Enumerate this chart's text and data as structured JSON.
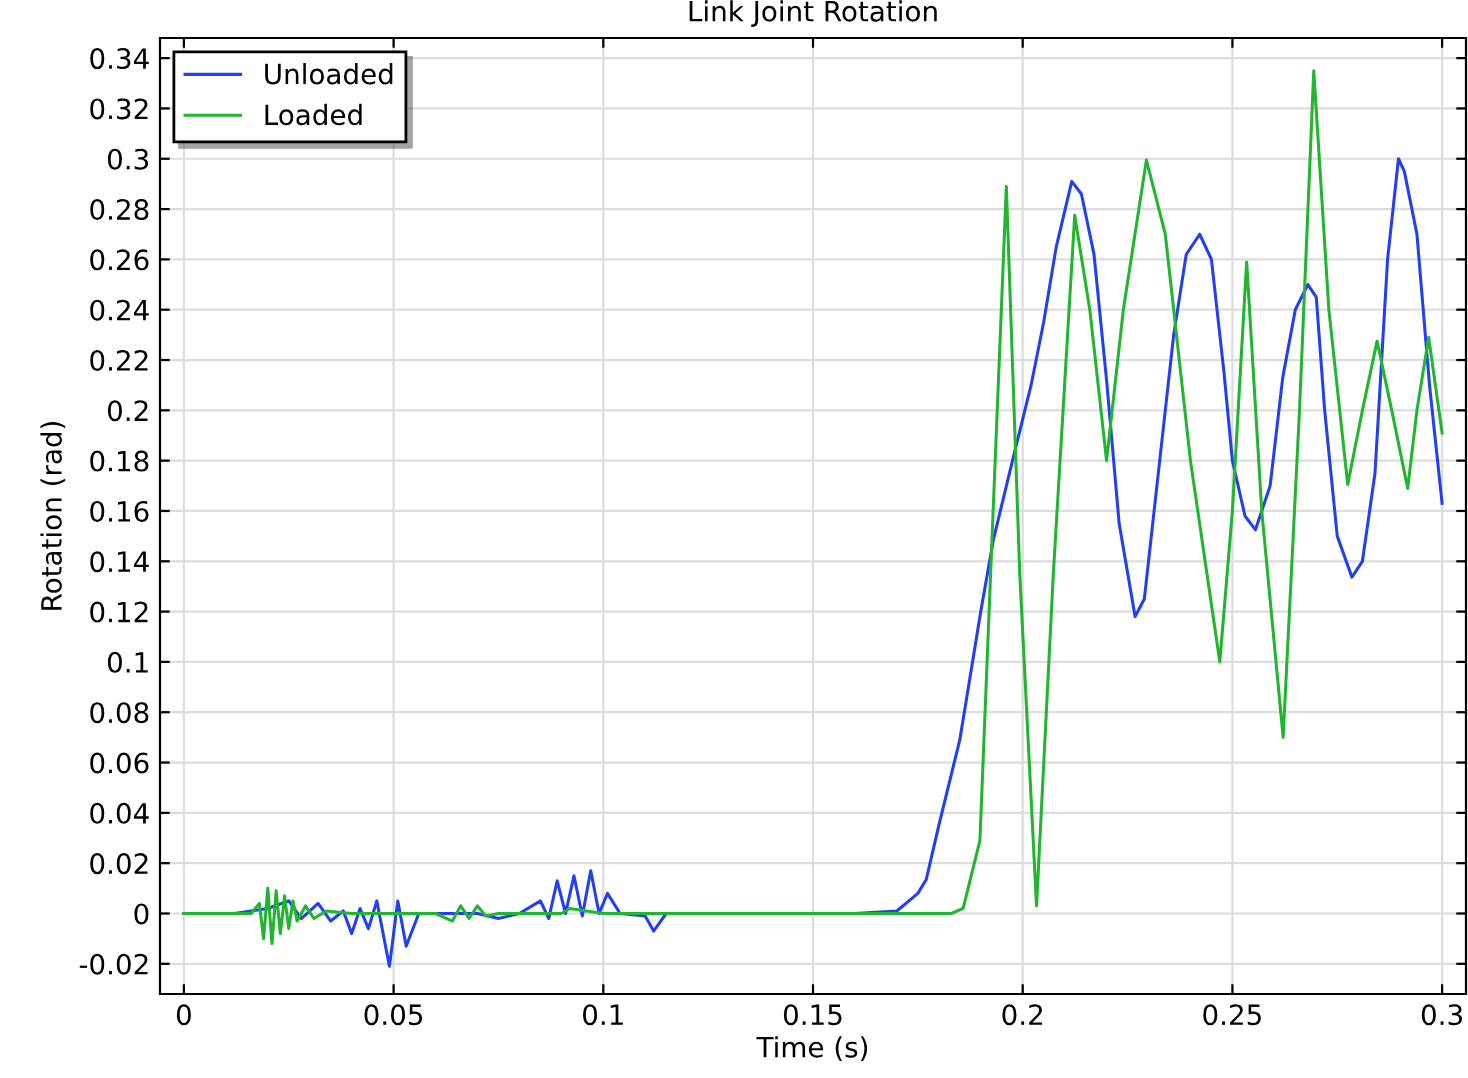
{
  "chart_data": {
    "type": "line",
    "title": "Link Joint Rotation",
    "xlabel": "Time (s)",
    "ylabel": "Rotation (rad)",
    "xlim": [
      -0.0057,
      0.3057
    ],
    "ylim": [
      -0.032,
      0.348
    ],
    "xticks": [
      0,
      0.05,
      0.1,
      0.15,
      0.2,
      0.25,
      0.3
    ],
    "yticks": [
      -0.02,
      0,
      0.02,
      0.04,
      0.06,
      0.08,
      0.1,
      0.12,
      0.14,
      0.16,
      0.18,
      0.2,
      0.22,
      0.24,
      0.26,
      0.28,
      0.3,
      0.32,
      0.34
    ],
    "grid": true,
    "legend": "top left",
    "marker": "none",
    "line_style": "solid",
    "series": [
      {
        "name": "Unloaded",
        "color": "#2340f0",
        "x": [
          0,
          0.012,
          0.02,
          0.025,
          0.028,
          0.032,
          0.035,
          0.038,
          0.04,
          0.042,
          0.044,
          0.046,
          0.049,
          0.051,
          0.053,
          0.056,
          0.07,
          0.075,
          0.08,
          0.085,
          0.087,
          0.089,
          0.091,
          0.093,
          0.095,
          0.097,
          0.099,
          0.101,
          0.104,
          0.11,
          0.112,
          0.115,
          0.16,
          0.17,
          0.175,
          0.177,
          0.18,
          0.185,
          0.19,
          0.193,
          0.198,
          0.202,
          0.205,
          0.208,
          0.2117,
          0.214,
          0.217,
          0.22,
          0.223,
          0.2268,
          0.229,
          0.232,
          0.236,
          0.239,
          0.2422,
          0.245,
          0.248,
          0.25,
          0.253,
          0.2555,
          0.259,
          0.262,
          0.265,
          0.268,
          0.27,
          0.272,
          0.275,
          0.2785,
          0.281,
          0.284,
          0.287,
          0.2896,
          0.291,
          0.294,
          0.297,
          0.3
        ],
        "values": [
          0,
          0,
          0.002,
          0.005,
          -0.002,
          0.004,
          -0.003,
          0.001,
          -0.008,
          0.002,
          -0.006,
          0.005,
          -0.021,
          0.005,
          -0.013,
          0,
          0,
          -0.002,
          0,
          0.005,
          -0.002,
          0.013,
          0,
          0.015,
          -0.001,
          0.017,
          0,
          0.008,
          0,
          -0.001,
          -0.007,
          0,
          0,
          0.001,
          0.008,
          0.0135,
          0.035,
          0.069,
          0.12,
          0.1485,
          0.183,
          0.21,
          0.235,
          0.265,
          0.291,
          0.286,
          0.262,
          0.212,
          0.155,
          0.118,
          0.125,
          0.17,
          0.23,
          0.262,
          0.27,
          0.26,
          0.215,
          0.18,
          0.158,
          0.1525,
          0.17,
          0.213,
          0.24,
          0.25,
          0.245,
          0.2,
          0.15,
          0.1337,
          0.14,
          0.175,
          0.26,
          0.3,
          0.295,
          0.27,
          0.21,
          0.163
        ]
      },
      {
        "name": "Loaded",
        "color": "#22b530",
        "x": [
          0,
          0.016,
          0.018,
          0.019,
          0.02,
          0.021,
          0.022,
          0.023,
          0.024,
          0.025,
          0.026,
          0.027,
          0.029,
          0.031,
          0.034,
          0.04,
          0.06,
          0.064,
          0.066,
          0.068,
          0.07,
          0.072,
          0.075,
          0.09,
          0.092,
          0.1,
          0.15,
          0.183,
          0.1858,
          0.1898,
          0.193,
          0.1961,
          0.1993,
          0.2033,
          0.2073,
          0.2124,
          0.216,
          0.22,
          0.224,
          0.2295,
          0.234,
          0.24,
          0.247,
          0.25,
          0.2534,
          0.257,
          0.2621,
          0.266,
          0.2694,
          0.273,
          0.2775,
          0.281,
          0.2845,
          0.288,
          0.2918,
          0.294,
          0.2968,
          0.3
        ],
        "values": [
          0,
          0,
          0.004,
          -0.01,
          0.01,
          -0.012,
          0.009,
          -0.008,
          0.007,
          -0.006,
          0.005,
          -0.003,
          0.003,
          -0.002,
          0.001,
          0,
          0,
          -0.003,
          0.003,
          -0.002,
          0.003,
          -0.001,
          0,
          0,
          0.002,
          0,
          0,
          0,
          0.002,
          0.029,
          0.162,
          0.289,
          0.135,
          0.003,
          0.135,
          0.2775,
          0.24,
          0.18,
          0.24,
          0.2995,
          0.27,
          0.18,
          0.1,
          0.16,
          0.259,
          0.16,
          0.07,
          0.2,
          0.335,
          0.24,
          0.1705,
          0.2,
          0.2275,
          0.2,
          0.169,
          0.2,
          0.229,
          0.191
        ]
      }
    ]
  }
}
